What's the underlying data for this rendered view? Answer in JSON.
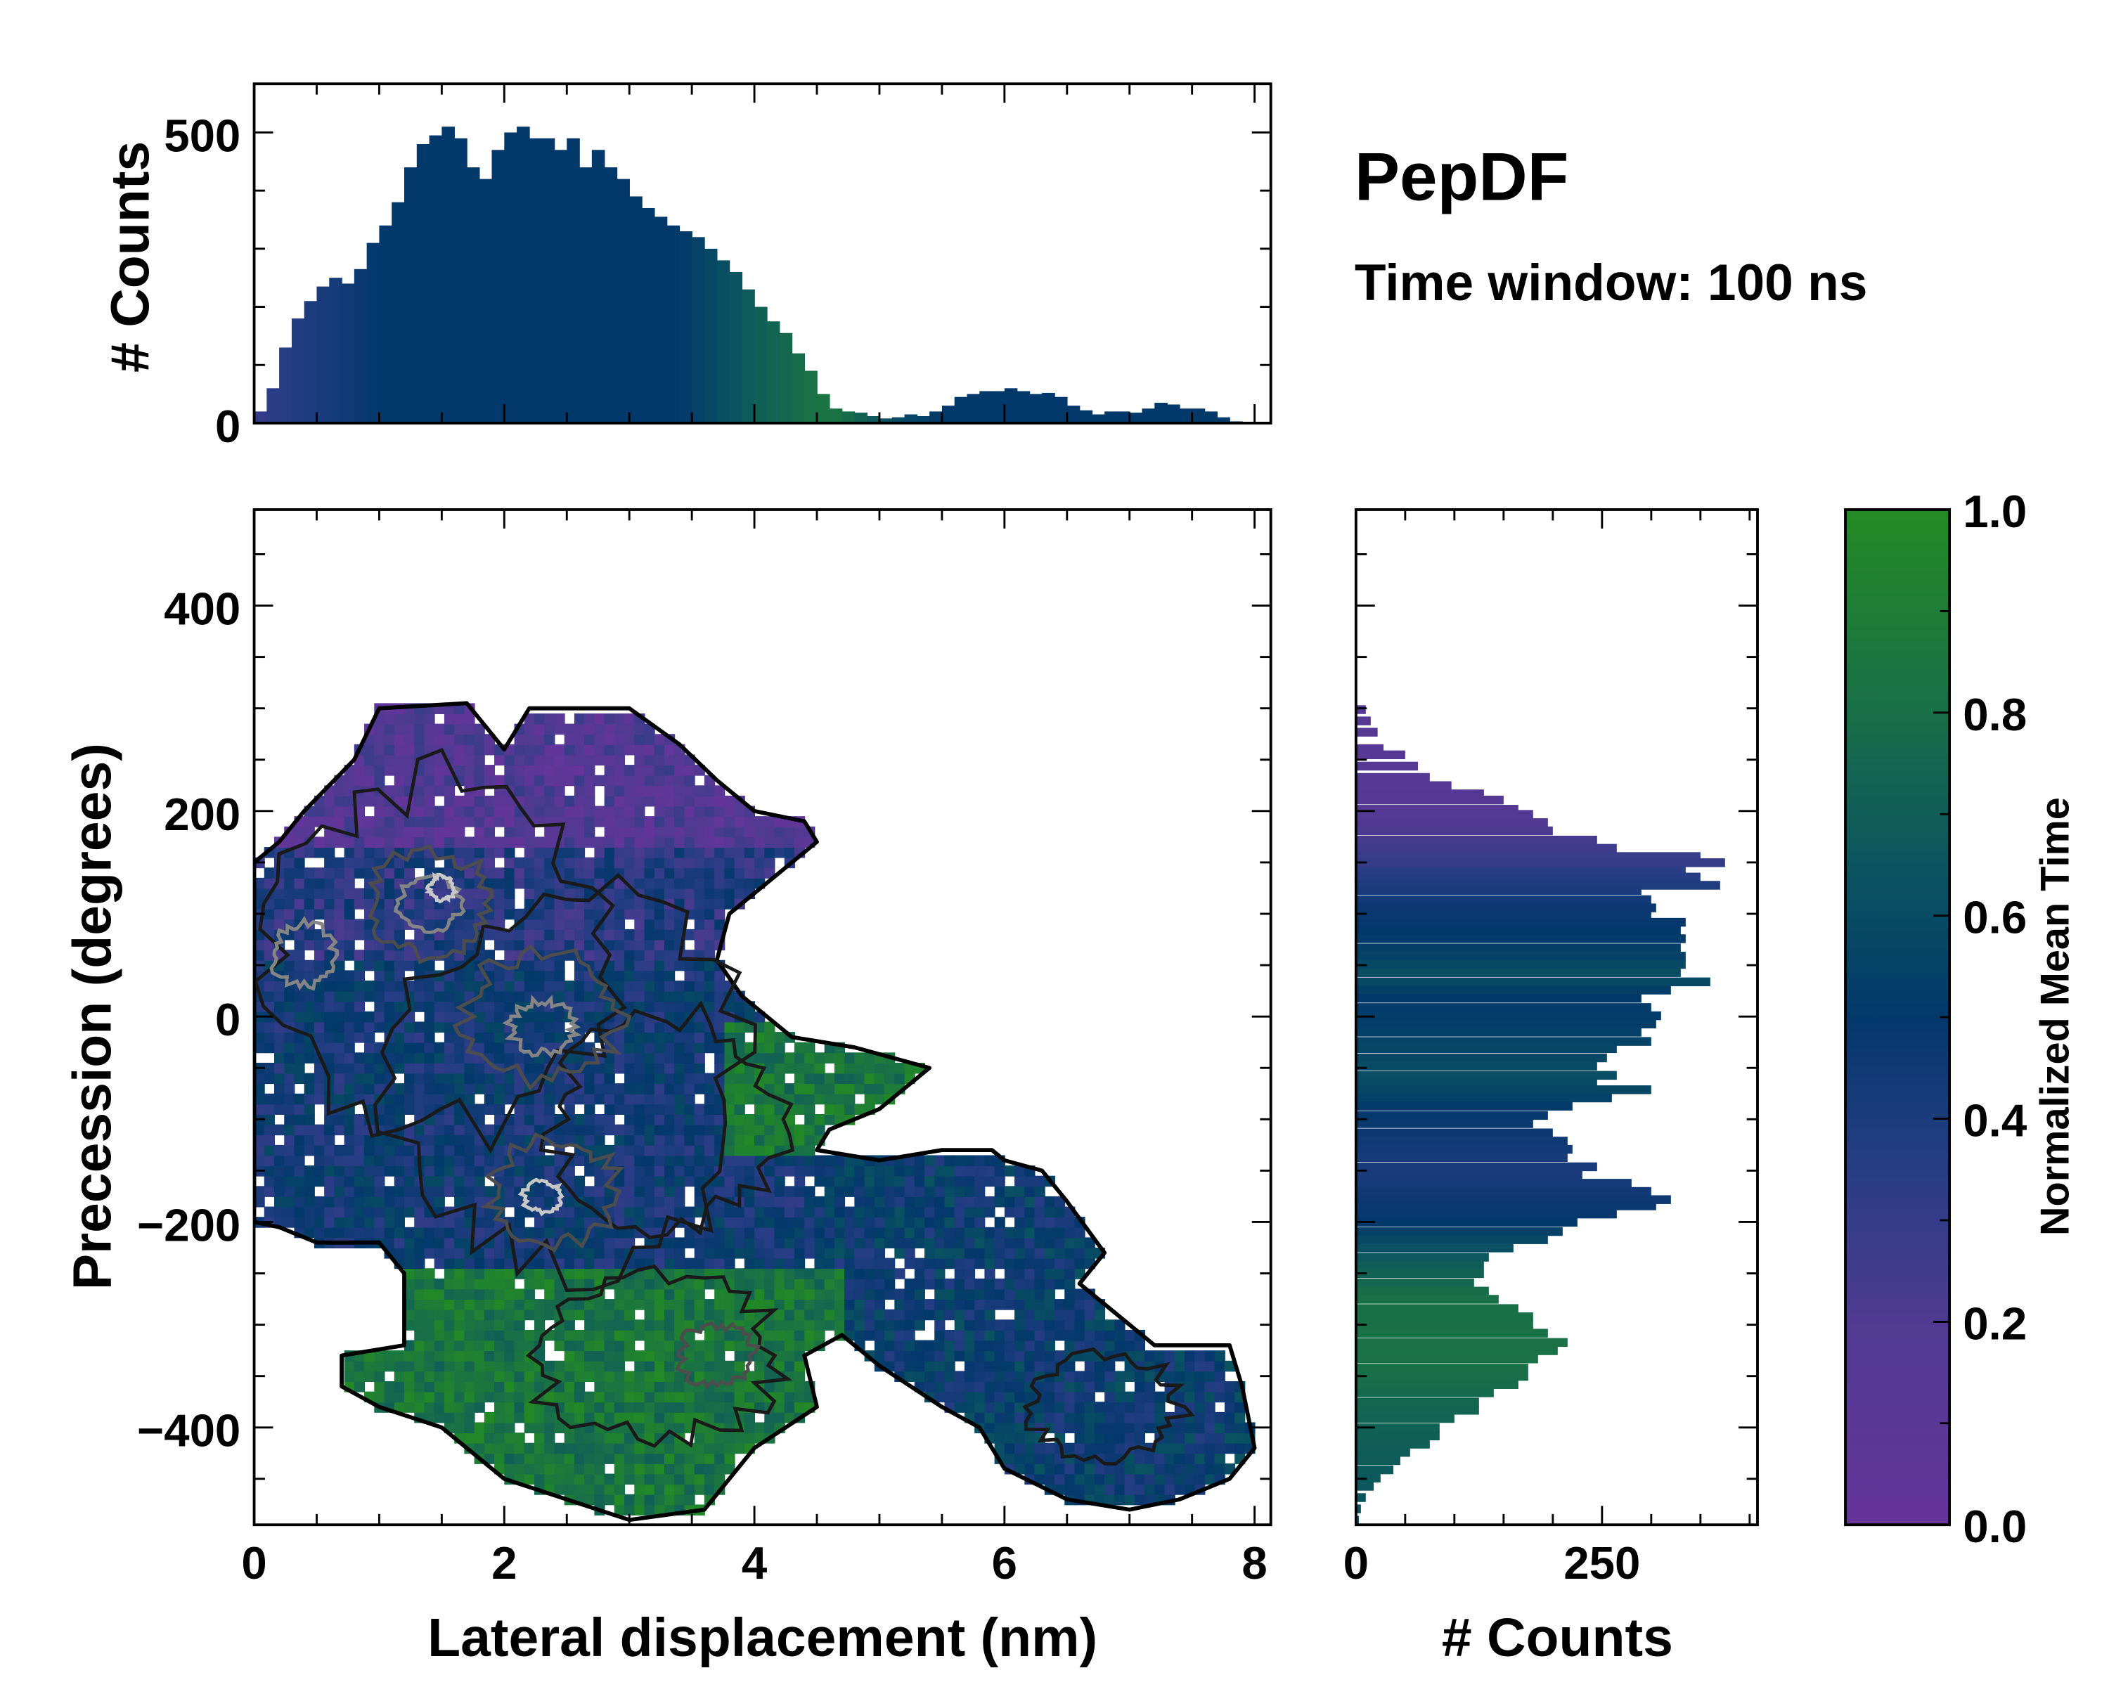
{
  "title": "PepDF",
  "subtitle": "Time window: 100 ns",
  "colormap": [
    {
      "v": 0.0,
      "c": "#66349b"
    },
    {
      "v": 0.2,
      "c": "#4f3a92"
    },
    {
      "v": 0.35,
      "c": "#273d85"
    },
    {
      "v": 0.5,
      "c": "#03386b"
    },
    {
      "v": 0.65,
      "c": "#0b5560"
    },
    {
      "v": 0.8,
      "c": "#186f48"
    },
    {
      "v": 1.0,
      "c": "#238b24"
    }
  ],
  "chart_data": [
    {
      "id": "top-histogram",
      "type": "bar",
      "xlabel": "",
      "ylabel": "# Counts",
      "xlim": [
        0,
        8.13
      ],
      "ylim": [
        0,
        585
      ],
      "yticks": [
        {
          "v": 0,
          "label": "0"
        },
        {
          "v": 500,
          "label": "500"
        }
      ],
      "bin_width": 0.1,
      "x": [
        0.05,
        0.15,
        0.25,
        0.35,
        0.45,
        0.55,
        0.65,
        0.75,
        0.85,
        0.95,
        1.05,
        1.15,
        1.25,
        1.35,
        1.45,
        1.55,
        1.65,
        1.75,
        1.85,
        1.95,
        2.05,
        2.15,
        2.25,
        2.35,
        2.45,
        2.55,
        2.65,
        2.75,
        2.85,
        2.95,
        3.05,
        3.15,
        3.25,
        3.35,
        3.45,
        3.55,
        3.65,
        3.75,
        3.85,
        3.95,
        4.05,
        4.15,
        4.25,
        4.35,
        4.45,
        4.55,
        4.65,
        4.75,
        4.85,
        4.95,
        5.05,
        5.15,
        5.25,
        5.35,
        5.45,
        5.55,
        5.65,
        5.75,
        5.85,
        5.95,
        6.05,
        6.15,
        6.25,
        6.35,
        6.45,
        6.55,
        6.65,
        6.75,
        6.85,
        6.95,
        7.05,
        7.15,
        7.25,
        7.35,
        7.45,
        7.55,
        7.65,
        7.75,
        7.85
      ],
      "values": [
        20,
        60,
        130,
        180,
        210,
        235,
        250,
        240,
        265,
        310,
        340,
        380,
        440,
        480,
        495,
        510,
        490,
        440,
        420,
        470,
        500,
        510,
        490,
        490,
        470,
        490,
        440,
        470,
        440,
        420,
        390,
        370,
        355,
        340,
        330,
        320,
        300,
        280,
        260,
        230,
        200,
        175,
        155,
        120,
        90,
        50,
        25,
        20,
        18,
        12,
        8,
        10,
        15,
        12,
        20,
        30,
        45,
        50,
        55,
        55,
        60,
        55,
        50,
        52,
        45,
        30,
        22,
        15,
        20,
        20,
        18,
        25,
        35,
        32,
        25,
        25,
        20,
        10,
        3
      ],
      "mean_time_by_x": [
        [
          0,
          0.3
        ],
        [
          0.5,
          0.4
        ],
        [
          1.0,
          0.5
        ],
        [
          3.4,
          0.5
        ],
        [
          4.0,
          0.7
        ],
        [
          4.6,
          0.85
        ],
        [
          5.0,
          0.65
        ],
        [
          5.5,
          0.5
        ],
        [
          8.1,
          0.5
        ]
      ]
    },
    {
      "id": "heatmap",
      "type": "heatmap",
      "xlabel": "Lateral displacement (nm)",
      "ylabel": "Precession (degrees)",
      "xlim": [
        0,
        8.13
      ],
      "ylim": [
        -495,
        493
      ],
      "xticks": [
        {
          "v": 0,
          "label": "0"
        },
        {
          "v": 2,
          "label": "2"
        },
        {
          "v": 4,
          "label": "4"
        },
        {
          "v": 6,
          "label": "6"
        },
        {
          "v": 8,
          "label": "8"
        }
      ],
      "yticks": [
        {
          "v": 400,
          "label": "400"
        },
        {
          "v": 200,
          "label": "200"
        },
        {
          "v": 0,
          "label": "0"
        },
        {
          "v": -200,
          "label": "−200"
        },
        {
          "v": -400,
          "label": "−400"
        }
      ],
      "cell": {
        "dx": 0.08,
        "dy": 10
      },
      "support_boundary": [
        [
          0,
          150
        ],
        [
          0.2,
          170
        ],
        [
          0.4,
          200
        ],
        [
          0.8,
          250
        ],
        [
          1.0,
          300
        ],
        [
          1.7,
          305
        ],
        [
          2.0,
          260
        ],
        [
          2.2,
          300
        ],
        [
          3.0,
          300
        ],
        [
          3.4,
          265
        ],
        [
          3.7,
          230
        ],
        [
          4.0,
          200
        ],
        [
          4.4,
          190
        ],
        [
          4.5,
          170
        ],
        [
          4.1,
          130
        ],
        [
          3.8,
          100
        ],
        [
          3.7,
          55
        ],
        [
          3.9,
          20
        ],
        [
          4.3,
          -20
        ],
        [
          4.8,
          -30
        ],
        [
          5.4,
          -50
        ],
        [
          5.0,
          -90
        ],
        [
          4.6,
          -110
        ],
        [
          4.5,
          -130
        ],
        [
          5.0,
          -140
        ],
        [
          5.5,
          -130
        ],
        [
          5.9,
          -130
        ],
        [
          6.0,
          -140
        ],
        [
          6.3,
          -150
        ],
        [
          6.5,
          -180
        ],
        [
          6.8,
          -230
        ],
        [
          6.6,
          -260
        ],
        [
          7.0,
          -300
        ],
        [
          7.2,
          -320
        ],
        [
          7.5,
          -320
        ],
        [
          7.8,
          -320
        ],
        [
          7.9,
          -360
        ],
        [
          8.0,
          -420
        ],
        [
          7.8,
          -450
        ],
        [
          7.4,
          -470
        ],
        [
          7.0,
          -480
        ],
        [
          6.5,
          -470
        ],
        [
          6.0,
          -440
        ],
        [
          5.8,
          -400
        ],
        [
          5.5,
          -380
        ],
        [
          5.0,
          -340
        ],
        [
          4.7,
          -310
        ],
        [
          4.4,
          -330
        ],
        [
          4.5,
          -380
        ],
        [
          4.0,
          -420
        ],
        [
          3.8,
          -450
        ],
        [
          3.6,
          -480
        ],
        [
          3.0,
          -490
        ],
        [
          2.5,
          -470
        ],
        [
          2.0,
          -450
        ],
        [
          1.5,
          -400
        ],
        [
          1.0,
          -380
        ],
        [
          0.7,
          -360
        ],
        [
          0.7,
          -330
        ],
        [
          1.2,
          -320
        ],
        [
          1.2,
          -250
        ],
        [
          1.0,
          -220
        ],
        [
          0.5,
          -220
        ],
        [
          0.2,
          -205
        ],
        [
          0,
          -200
        ]
      ],
      "zones": [
        {
          "name": "green-arm",
          "x": [
            3.8,
            5.6
          ],
          "y": [
            -130,
            0
          ],
          "t": 0.85
        },
        {
          "name": "green-bottom",
          "x": [
            0,
            4.7
          ],
          "y": [
            -500,
            -240
          ],
          "t": 0.85
        },
        {
          "name": "navy-right",
          "x": [
            4.5,
            8.2
          ],
          "y": [
            -500,
            -130
          ],
          "t": 0.5
        },
        {
          "name": "purple-top",
          "x": [
            0,
            5
          ],
          "y": [
            170,
            400
          ],
          "t": 0.15
        },
        {
          "name": "purple-blue",
          "x": [
            0,
            5
          ],
          "y": [
            60,
            170
          ],
          "t": 0.35
        },
        {
          "name": "blue-core",
          "x": [
            0,
            5
          ],
          "y": [
            -240,
            60
          ],
          "t": 0.45
        }
      ],
      "contours": [
        {
          "cx": 1.5,
          "cy": 60,
          "rx": 1.3,
          "ry": 170,
          "level": 0
        },
        {
          "cx": 2.5,
          "cy": -60,
          "rx": 1.4,
          "ry": 180,
          "level": 0
        },
        {
          "cx": 3.3,
          "cy": -100,
          "rx": 0.9,
          "ry": 100,
          "level": 0
        },
        {
          "cx": 3.2,
          "cy": -330,
          "rx": 1.0,
          "ry": 80,
          "level": 0
        },
        {
          "cx": 6.8,
          "cy": -380,
          "rx": 0.6,
          "ry": 50,
          "level": 0
        },
        {
          "cx": 1.4,
          "cy": 110,
          "rx": 0.5,
          "ry": 50,
          "level": 1
        },
        {
          "cx": 2.3,
          "cy": 0,
          "rx": 0.6,
          "ry": 60,
          "level": 1
        },
        {
          "cx": 2.4,
          "cy": -170,
          "rx": 0.5,
          "ry": 50,
          "level": 1
        },
        {
          "cx": 3.7,
          "cy": -330,
          "rx": 0.3,
          "ry": 30,
          "level": 1
        },
        {
          "cx": 1.4,
          "cy": 110,
          "rx": 0.25,
          "ry": 25,
          "level": 2
        },
        {
          "cx": 2.3,
          "cy": -10,
          "rx": 0.25,
          "ry": 25,
          "level": 2
        },
        {
          "cx": 0.4,
          "cy": 60,
          "rx": 0.25,
          "ry": 30,
          "level": 2
        },
        {
          "cx": 1.5,
          "cy": 125,
          "rx": 0.1,
          "ry": 12,
          "level": 3
        },
        {
          "cx": 2.3,
          "cy": -175,
          "rx": 0.15,
          "ry": 15,
          "level": 3
        }
      ],
      "contour_colors": [
        "#1a1a1a",
        "#4d4d4d",
        "#858585",
        "#c8c8c8"
      ]
    },
    {
      "id": "right-histogram",
      "type": "bar",
      "orientation": "horizontal",
      "xlabel": "# Counts",
      "xlim": [
        0,
        408
      ],
      "ylim": [
        -495,
        493
      ],
      "xticks": [
        {
          "v": 0,
          "label": "0"
        },
        {
          "v": 250,
          "label": "250"
        }
      ],
      "bin_height": 8,
      "bins": [
        [
          299,
          10
        ],
        [
          288,
          15
        ],
        [
          277,
          22
        ],
        [
          261,
          28
        ],
        [
          255,
          50
        ],
        [
          244,
          63
        ],
        [
          233,
          75
        ],
        [
          225,
          97
        ],
        [
          217,
          130
        ],
        [
          211,
          150
        ],
        [
          202,
          165
        ],
        [
          197,
          180
        ],
        [
          189,
          195
        ],
        [
          181,
          200
        ],
        [
          172,
          245
        ],
        [
          164,
          265
        ],
        [
          156,
          350
        ],
        [
          150,
          375
        ],
        [
          142,
          335
        ],
        [
          136,
          350
        ],
        [
          128,
          370
        ],
        [
          123,
          290
        ],
        [
          114,
          300
        ],
        [
          106,
          305
        ],
        [
          98,
          300
        ],
        [
          92,
          335
        ],
        [
          84,
          330
        ],
        [
          76,
          335
        ],
        [
          67,
          330
        ],
        [
          59,
          335
        ],
        [
          51,
          335
        ],
        [
          43,
          330
        ],
        [
          34,
          360
        ],
        [
          26,
          320
        ],
        [
          18,
          290
        ],
        [
          9,
          300
        ],
        [
          1,
          310
        ],
        [
          -7,
          305
        ],
        [
          -15,
          290
        ],
        [
          -24,
          300
        ],
        [
          -31,
          265
        ],
        [
          -40,
          255
        ],
        [
          -48,
          245
        ],
        [
          -57,
          265
        ],
        [
          -65,
          245
        ],
        [
          -71,
          300
        ],
        [
          -79,
          260
        ],
        [
          -87,
          220
        ],
        [
          -96,
          195
        ],
        [
          -104,
          180
        ],
        [
          -113,
          200
        ],
        [
          -121,
          215
        ],
        [
          -129,
          220
        ],
        [
          -137,
          215
        ],
        [
          -146,
          245
        ],
        [
          -154,
          230
        ],
        [
          -162,
          280
        ],
        [
          -170,
          300
        ],
        [
          -178,
          320
        ],
        [
          -184,
          305
        ],
        [
          -192,
          265
        ],
        [
          -200,
          225
        ],
        [
          -209,
          210
        ],
        [
          -217,
          195
        ],
        [
          -225,
          160
        ],
        [
          -234,
          135
        ],
        [
          -242,
          130
        ],
        [
          -250,
          130
        ],
        [
          -259,
          120
        ],
        [
          -267,
          135
        ],
        [
          -275,
          145
        ],
        [
          -284,
          165
        ],
        [
          -292,
          180
        ],
        [
          -300,
          180
        ],
        [
          -308,
          195
        ],
        [
          -317,
          215
        ],
        [
          -325,
          205
        ],
        [
          -333,
          185
        ],
        [
          -342,
          175
        ],
        [
          -350,
          175
        ],
        [
          -358,
          165
        ],
        [
          -366,
          140
        ],
        [
          -375,
          125
        ],
        [
          -383,
          125
        ],
        [
          -391,
          100
        ],
        [
          -400,
          85
        ],
        [
          -408,
          85
        ],
        [
          -416,
          75
        ],
        [
          -424,
          55
        ],
        [
          -432,
          45
        ],
        [
          -441,
          38
        ],
        [
          -449,
          25
        ],
        [
          -457,
          18
        ],
        [
          -468,
          10
        ],
        [
          -479,
          5
        ],
        [
          -490,
          3
        ]
      ],
      "mean_time_by_y": [
        [
          300,
          0.12
        ],
        [
          200,
          0.15
        ],
        [
          150,
          0.3
        ],
        [
          110,
          0.45
        ],
        [
          60,
          0.55
        ],
        [
          40,
          0.62
        ],
        [
          20,
          0.5
        ],
        [
          -20,
          0.55
        ],
        [
          -60,
          0.62
        ],
        [
          -90,
          0.5
        ],
        [
          -150,
          0.4
        ],
        [
          -200,
          0.5
        ],
        [
          -230,
          0.65
        ],
        [
          -270,
          0.8
        ],
        [
          -330,
          0.82
        ],
        [
          -400,
          0.72
        ],
        [
          -495,
          0.62
        ]
      ]
    },
    {
      "id": "colorbar",
      "type": "colorbar",
      "label": "Normalized Mean Time",
      "range": [
        0,
        1
      ],
      "ticks": [
        {
          "v": 0,
          "label": "0.0"
        },
        {
          "v": 0.2,
          "label": "0.2"
        },
        {
          "v": 0.4,
          "label": "0.4"
        },
        {
          "v": 0.6,
          "label": "0.6"
        },
        {
          "v": 0.8,
          "label": "0.8"
        },
        {
          "v": 1.0,
          "label": "1.0"
        }
      ]
    }
  ]
}
